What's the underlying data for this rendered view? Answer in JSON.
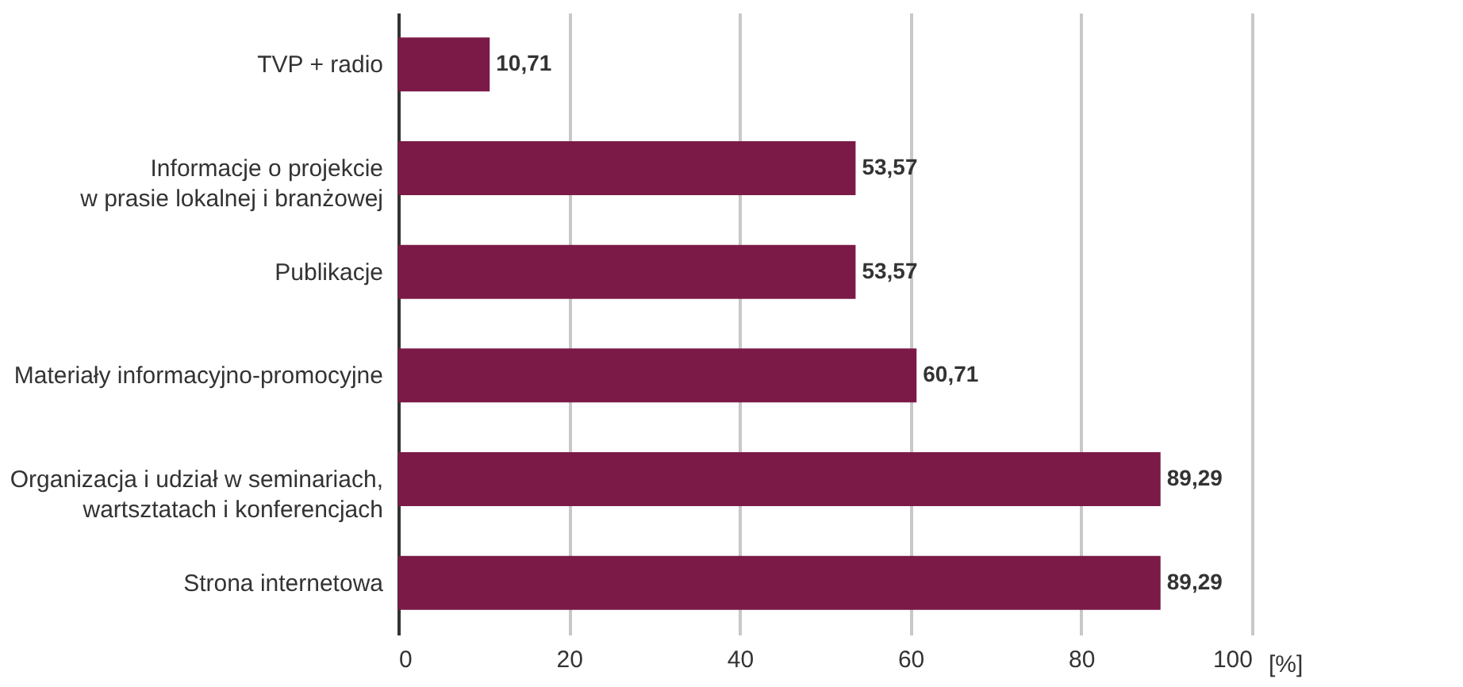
{
  "chart_data": {
    "type": "bar",
    "orientation": "horizontal",
    "xlabel": "[%]",
    "categories": [
      "TVP + radio",
      "Informacje o projekcie\nw prasie lokalnej i branżowej",
      "Publikacje",
      "Materiały informacyjno-promocyjne",
      "Organizacja i udział w seminariach,\nwartsztatach i konferencjach",
      "Strona internetowa"
    ],
    "values": [
      10.71,
      53.57,
      53.57,
      60.71,
      89.29,
      89.29
    ],
    "value_labels": [
      "10,71",
      "53,57",
      "53,57",
      "60,71",
      "89,29",
      "89,29"
    ],
    "color": "#7b1a47",
    "xlim": [
      0,
      100
    ],
    "xticks": [
      0,
      20,
      40,
      60,
      80,
      100
    ],
    "grid": "x"
  }
}
